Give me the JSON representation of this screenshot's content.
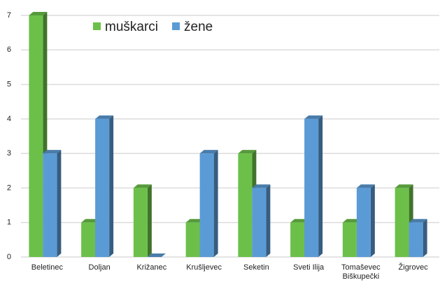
{
  "chart_data": {
    "type": "bar",
    "categories": [
      "Beletinec",
      "Doljan",
      "Križanec",
      "Krušljevec",
      "Seketin",
      "Sveti Ilija",
      "Tomaševec Biškupečki",
      "Žigrovec"
    ],
    "series": [
      {
        "name": "muškarci",
        "color": "#6cc04a",
        "values": [
          7,
          1,
          2,
          1,
          3,
          1,
          1,
          2
        ]
      },
      {
        "name": "žene",
        "color": "#5b9bd5",
        "values": [
          3,
          4,
          0,
          3,
          2,
          4,
          2,
          1
        ]
      }
    ],
    "ylim": [
      0,
      7
    ],
    "yticks": [
      0,
      1,
      2,
      3,
      4,
      5,
      6,
      7
    ],
    "grid": true,
    "legend": "top-left"
  }
}
